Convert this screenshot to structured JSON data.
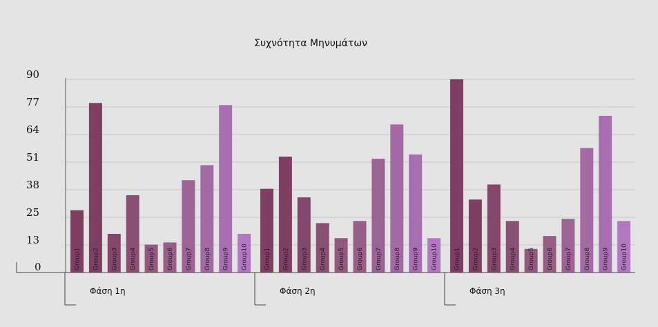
{
  "chart_data": {
    "type": "bar",
    "title": "Συχνότητα Μηνυμάτων",
    "y_ticks": [
      "90",
      "77",
      "64",
      "51",
      "38",
      "25",
      "13",
      "0"
    ],
    "ylim": [
      0,
      90
    ],
    "grid": true,
    "legend": "none",
    "groups": [
      {
        "label": "Φάση 1η",
        "bars": [
          {
            "label": "Group1",
            "value": 29,
            "color": "#7e3f63"
          },
          {
            "label": "Group2",
            "value": 79,
            "color": "#7e3f63"
          },
          {
            "label": "Group3",
            "value": 18,
            "color": "#84476b"
          },
          {
            "label": "Group4",
            "value": 36,
            "color": "#8a5073"
          },
          {
            "label": "Group5",
            "value": 13,
            "color": "#92587d"
          },
          {
            "label": "Group6",
            "value": 14,
            "color": "#975e86"
          },
          {
            "label": "Group7",
            "value": 43,
            "color": "#9d6394"
          },
          {
            "label": "Group8",
            "value": 50,
            "color": "#a46aa4"
          },
          {
            "label": "Group9",
            "value": 78,
            "color": "#a96eb2"
          },
          {
            "label": "Group10",
            "value": 18,
            "color": "#b279c0"
          }
        ]
      },
      {
        "label": "Φάση 2η",
        "bars": [
          {
            "label": "Group1",
            "value": 39,
            "color": "#7e3f63"
          },
          {
            "label": "Group2",
            "value": 54,
            "color": "#7e3f63"
          },
          {
            "label": "Group3",
            "value": 35,
            "color": "#84476b"
          },
          {
            "label": "Group4",
            "value": 23,
            "color": "#8a5073"
          },
          {
            "label": "Group5",
            "value": 16,
            "color": "#92587d"
          },
          {
            "label": "Group6",
            "value": 24,
            "color": "#975e86"
          },
          {
            "label": "Group7",
            "value": 53,
            "color": "#9d6394"
          },
          {
            "label": "Group8",
            "value": 69,
            "color": "#a46aa4"
          },
          {
            "label": "Group9",
            "value": 55,
            "color": "#a96eb2"
          },
          {
            "label": "Group10",
            "value": 16,
            "color": "#b279c0"
          }
        ]
      },
      {
        "label": "Φάση 3η",
        "bars": [
          {
            "label": "Group1",
            "value": 90,
            "color": "#7e3f63"
          },
          {
            "label": "Group2",
            "value": 34,
            "color": "#7e3f63"
          },
          {
            "label": "Group3",
            "value": 41,
            "color": "#84476b"
          },
          {
            "label": "Group4",
            "value": 24,
            "color": "#8a5073"
          },
          {
            "label": "Group5",
            "value": 11,
            "color": "#92587d"
          },
          {
            "label": "Group6",
            "value": 17,
            "color": "#975e86"
          },
          {
            "label": "Group7",
            "value": 25,
            "color": "#9d6394"
          },
          {
            "label": "Group8",
            "value": 58,
            "color": "#a46aa4"
          },
          {
            "label": "Group9",
            "value": 73,
            "color": "#a96eb2"
          },
          {
            "label": "Group10",
            "value": 24,
            "color": "#b279c0"
          }
        ]
      }
    ]
  }
}
